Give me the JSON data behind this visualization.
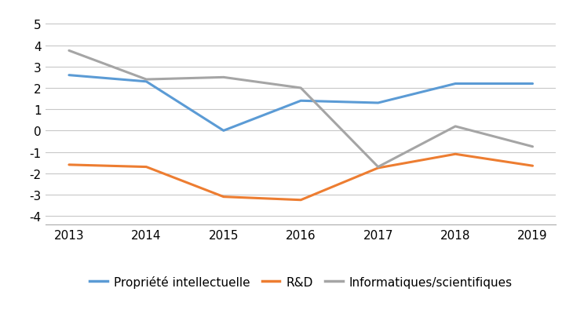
{
  "years": [
    2013,
    2014,
    2015,
    2016,
    2017,
    2018,
    2019
  ],
  "series": [
    {
      "label": "Propriété intellectuelle",
      "color": "#5B9BD5",
      "values": [
        2.6,
        2.3,
        0.0,
        1.4,
        1.3,
        2.2,
        2.2
      ]
    },
    {
      "label": "R&D",
      "color": "#ED7D31",
      "values": [
        -1.6,
        -1.7,
        -3.1,
        -3.25,
        -1.75,
        -1.1,
        -1.65
      ]
    },
    {
      "label": "Informatiques/scientifiques",
      "color": "#A5A5A5",
      "values": [
        3.75,
        2.4,
        2.5,
        2.0,
        -1.7,
        0.2,
        -0.75
      ]
    }
  ],
  "ylim": [
    -4.4,
    5.4
  ],
  "yticks": [
    -4,
    -3,
    -2,
    -1,
    0,
    1,
    2,
    3,
    4,
    5
  ],
  "background_color": "#ffffff",
  "grid_color": "#c8c8c8",
  "line_width": 2.2,
  "tick_fontsize": 11,
  "legend_fontsize": 11
}
